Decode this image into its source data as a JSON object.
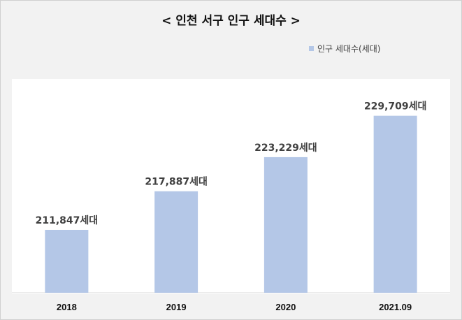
{
  "chart_data": {
    "type": "bar",
    "title": "< 인천 서구 인구 세대수 >",
    "categories": [
      "2018",
      "2019",
      "2020",
      "2021.09"
    ],
    "series": [
      {
        "name": "인구 세대수(세대)",
        "values": [
          211847,
          217887,
          223229,
          229709
        ],
        "labels": [
          "211,847세대",
          "217,887세대",
          "223,229세대",
          "229,709세대"
        ],
        "color": "#b4c7e7"
      }
    ],
    "ylim": [
      202000,
      237000
    ],
    "grid": false,
    "legend_position": "top-right"
  }
}
